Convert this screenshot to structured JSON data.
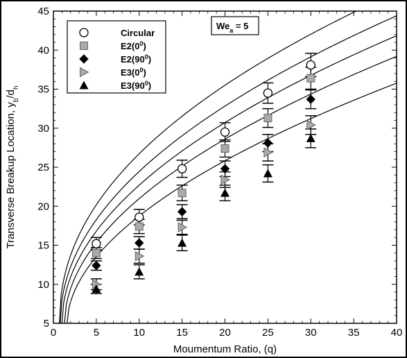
{
  "chart_data": {
    "type": "scatter",
    "xlabel": "Moumentum Ratio, (q)",
    "ylabel_parts": [
      "Transverse Breakup Location, y",
      "b",
      "/d",
      "h"
    ],
    "xlim": [
      0,
      40
    ],
    "ylim": [
      5,
      45
    ],
    "xticks": [
      0,
      5,
      10,
      15,
      20,
      25,
      30,
      35,
      40
    ],
    "yticks": [
      5,
      10,
      15,
      20,
      25,
      30,
      35,
      40,
      45
    ],
    "annotation": {
      "main": "We",
      "sub": "a",
      "rest": " = 5"
    },
    "legend_position": "top-left",
    "series": [
      {
        "name": "Circular",
        "marker": "circle-open",
        "x": [
          5,
          10,
          15,
          20,
          25,
          30
        ],
        "y": [
          15.2,
          18.6,
          24.8,
          29.5,
          34.5,
          38.1
        ],
        "err": [
          0.8,
          1.0,
          1.1,
          1.2,
          1.3,
          1.5
        ],
        "fit": {
          "a": 7.7,
          "b": 0.465,
          "x0": 0.7
        }
      },
      {
        "name": "E2(0",
        "name_sup": "0",
        "name_tail": ")",
        "marker": "square-gray",
        "x": [
          5,
          10,
          15,
          20,
          25,
          30
        ],
        "y": [
          14.0,
          17.4,
          21.7,
          27.4,
          31.3,
          36.4
        ],
        "err": [
          0.7,
          0.9,
          1.0,
          1.1,
          1.2,
          1.4
        ],
        "fit": {
          "a": 6.6,
          "b": 0.487,
          "x0": 0.8
        }
      },
      {
        "name": "E2(90",
        "name_sup": "0",
        "name_tail": ")",
        "marker": "diamond-filled",
        "x": [
          5,
          10,
          15,
          20,
          25,
          30
        ],
        "y": [
          12.4,
          15.3,
          19.3,
          24.8,
          28.1,
          33.7
        ],
        "err": [
          0.6,
          0.8,
          0.9,
          1.0,
          1.1,
          1.2
        ],
        "fit": {
          "a": 5.9,
          "b": 0.5,
          "x0": 1.0
        }
      },
      {
        "name": "E3(0",
        "name_sup": "0",
        "name_tail": ")",
        "marker": "triangle-right-gray",
        "x": [
          5,
          10,
          15,
          20,
          25,
          30
        ],
        "y": [
          10.0,
          13.6,
          17.3,
          23.4,
          26.9,
          30.4
        ],
        "err": [
          0.7,
          0.9,
          0.9,
          1.0,
          1.1,
          1.2
        ],
        "fit": {
          "a": 5.3,
          "b": 0.51,
          "x0": 1.3
        }
      },
      {
        "name": "E3(90",
        "name_sup": "0",
        "name_tail": ")",
        "marker": "triangle-up-filled",
        "x": [
          5,
          10,
          15,
          20,
          25,
          30
        ],
        "y": [
          9.4,
          11.6,
          15.3,
          21.7,
          24.2,
          28.7
        ],
        "err": [
          0.6,
          0.9,
          1.0,
          1.0,
          1.1,
          1.2
        ],
        "fit": {
          "a": 4.45,
          "b": 0.53,
          "x0": 1.6
        }
      }
    ],
    "colors": {
      "line": "#000000",
      "gray_fill": "#aaaaaa"
    }
  }
}
